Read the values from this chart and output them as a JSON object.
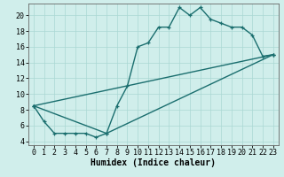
{
  "xlabel": "Humidex (Indice chaleur)",
  "xlim": [
    -0.5,
    23.5
  ],
  "ylim": [
    3.5,
    21.5
  ],
  "xticks": [
    0,
    1,
    2,
    3,
    4,
    5,
    6,
    7,
    8,
    9,
    10,
    11,
    12,
    13,
    14,
    15,
    16,
    17,
    18,
    19,
    20,
    21,
    22,
    23
  ],
  "yticks": [
    4,
    6,
    8,
    10,
    12,
    14,
    16,
    18,
    20
  ],
  "background_color": "#d0eeeb",
  "grid_color": "#aad8d4",
  "line_color": "#1a6e6e",
  "series1_x": [
    0,
    1,
    2,
    3,
    4,
    5,
    6,
    7,
    8,
    9,
    10,
    11,
    12,
    13,
    14,
    15,
    16,
    17,
    18,
    19,
    20,
    21,
    22,
    23
  ],
  "series1_y": [
    8.5,
    6.5,
    5.0,
    5.0,
    5.0,
    5.0,
    4.5,
    5.0,
    8.5,
    11.0,
    16.0,
    16.5,
    18.5,
    18.5,
    21.0,
    20.0,
    21.0,
    19.5,
    19.0,
    18.5,
    18.5,
    17.5,
    14.8,
    15.0
  ],
  "series2_x": [
    0,
    7,
    23
  ],
  "series2_y": [
    8.5,
    5.0,
    15.0
  ],
  "series3_x": [
    0,
    23
  ],
  "series3_y": [
    8.5,
    15.0
  ],
  "line_width": 1.0,
  "marker_size": 3.0,
  "marker_ew": 0.9,
  "font_size_label": 7,
  "font_size_tick": 6,
  "font_size_xlabel": 7
}
